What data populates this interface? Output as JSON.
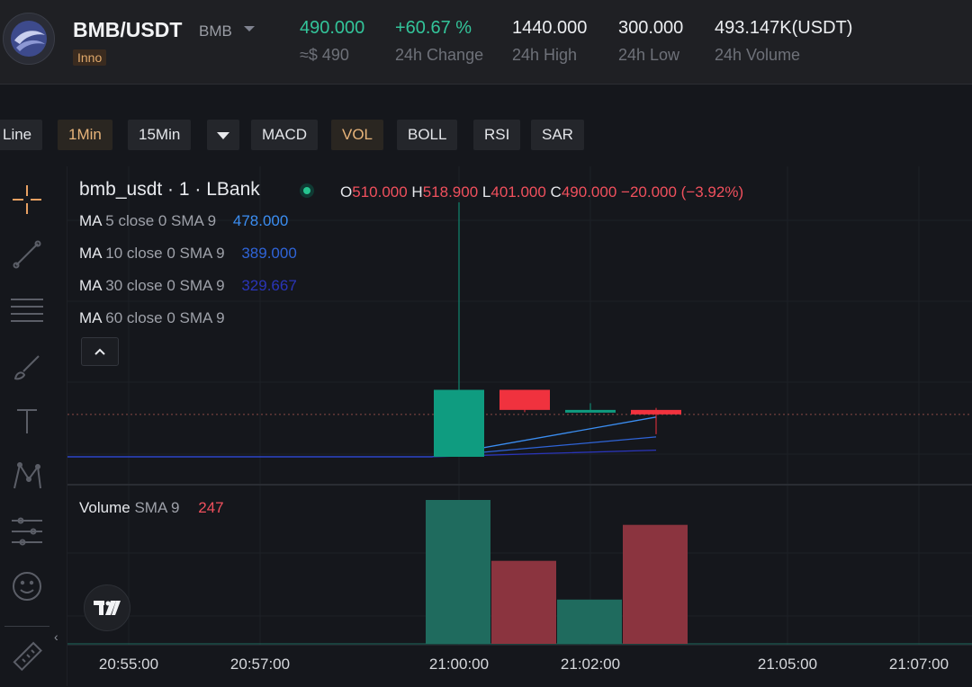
{
  "header": {
    "pair": "BMB/USDT",
    "pair_sub": "BMB",
    "badge": "Inno",
    "stats": [
      {
        "value": "490.000",
        "label": "≈$ 490"
      },
      {
        "value": "+60.67 %",
        "label": "24h Change"
      },
      {
        "value": "1440.000",
        "label": "24h High"
      },
      {
        "value": "300.000",
        "label": "24h Low"
      },
      {
        "value": "493.147K(USDT)",
        "label": "24h Volume"
      }
    ]
  },
  "toolbar": {
    "items": [
      "Line",
      "1Min",
      "15Min",
      "MACD",
      "VOL",
      "BOLL",
      "RSI",
      "SAR"
    ],
    "active_interval": "1Min",
    "active_indicator": "VOL"
  },
  "tools": [
    "crosshair-icon",
    "trend-line-icon",
    "fib-lines-icon",
    "brush-icon",
    "text-icon",
    "pattern-icon",
    "measure-icon",
    "emoji-icon",
    "ruler-icon"
  ],
  "legend": {
    "title": "bmb_usdt · 1 · LBank",
    "o_key": "O",
    "o_val": "510.000",
    "h_key": "H",
    "h_val": "518.900",
    "l_key": "L",
    "l_val": "401.000",
    "c_key": "C",
    "c_val": "490.000",
    "change": "−20.000 (−3.92%)",
    "ma": [
      {
        "name": "MA",
        "params": "5 close 0 SMA 9",
        "value": "478.000",
        "color": "#3b8ef2"
      },
      {
        "name": "MA",
        "params": "10 close 0 SMA 9",
        "value": "389.000",
        "color": "#2f64d8"
      },
      {
        "name": "MA",
        "params": "30 close 0 SMA 9",
        "value": "329.667",
        "color": "#2a35b8"
      },
      {
        "name": "MA",
        "params": "60 close 0 SMA 9",
        "value": "",
        "color": "#3b8ef2"
      }
    ]
  },
  "volume": {
    "name": "Volume",
    "params": "SMA 9",
    "value": "247"
  },
  "colors": {
    "up": "#0f9c80",
    "down": "#f0323e",
    "vol_up": "#1f6b5e",
    "vol_down": "#8b343f",
    "ma5": "#3b8ef2",
    "ma10": "#2f64d8",
    "ma30": "#2a35b8"
  },
  "time_labels": [
    "20:55:00",
    "20:57:00",
    "21:00:00",
    "21:02:00",
    "21:05:00",
    "21:07:00"
  ],
  "chart_data": {
    "type": "candlestick",
    "candles": [
      {
        "x": "21:00",
        "open": 300,
        "high": 1440,
        "low": 300,
        "close": 600
      },
      {
        "x": "21:01",
        "open": 600,
        "high": 600,
        "low": 500,
        "close": 510
      },
      {
        "x": "21:02",
        "open": 500,
        "high": 540,
        "low": 500,
        "close": 510
      },
      {
        "x": "21:03",
        "open": 510,
        "high": 518.9,
        "low": 401,
        "close": 490
      }
    ],
    "volume": [
      {
        "x": "21:00",
        "value": 520,
        "dir": "up"
      },
      {
        "x": "21:01",
        "value": 300,
        "dir": "down"
      },
      {
        "x": "21:02",
        "value": 160,
        "dir": "up"
      },
      {
        "x": "21:03",
        "value": 430,
        "dir": "down"
      }
    ],
    "ma_lines": [
      {
        "name": "MA5",
        "last": 478
      },
      {
        "name": "MA10",
        "last": 389
      },
      {
        "name": "MA30",
        "last": 329.667
      }
    ],
    "last_price": 490
  }
}
